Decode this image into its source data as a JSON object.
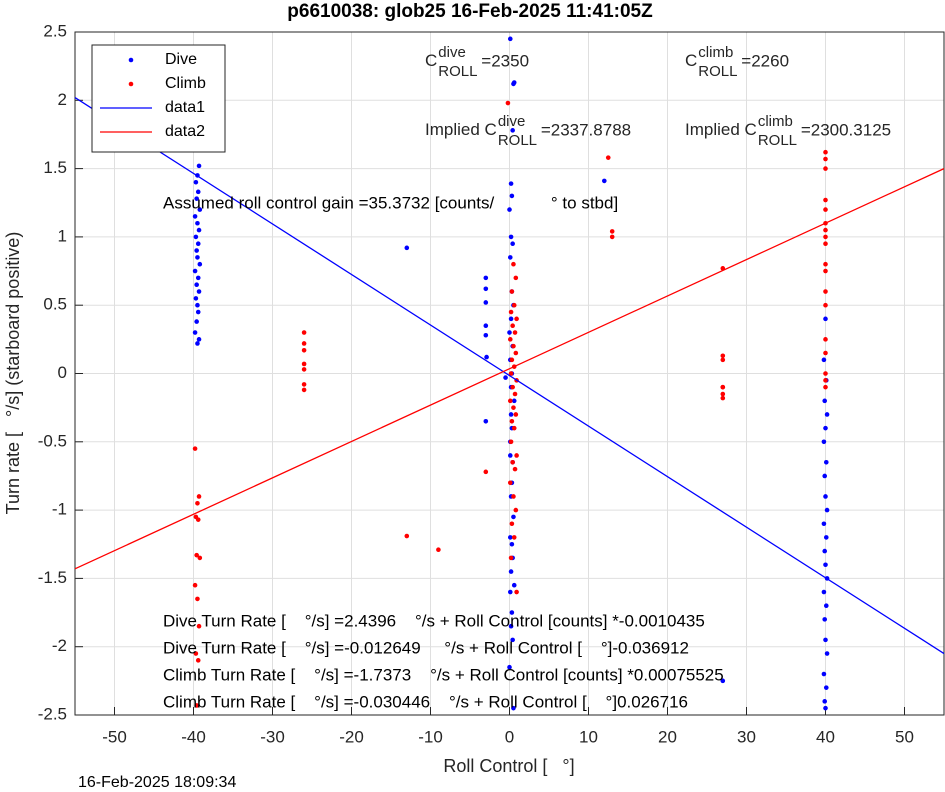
{
  "chart_data": {
    "type": "scatter",
    "title": "p6610038: glob25 16-Feb-2025 11:41:05Z",
    "x_label": "Roll Control [   °]",
    "y_label": "Turn rate [   °/s] (starboard positive)",
    "footer": "16-Feb-2025 18:09:34",
    "xlim": [
      -55,
      55
    ],
    "ylim": [
      -2.5,
      2.5
    ],
    "xticks": [
      -50,
      -40,
      -30,
      -20,
      -10,
      0,
      10,
      20,
      30,
      40,
      50
    ],
    "yticks": [
      -2.5,
      -2,
      -1.5,
      -1,
      -0.5,
      0,
      0.5,
      1,
      1.5,
      2,
      2.5
    ],
    "grid": true,
    "legend": "upper left",
    "series": [
      {
        "name": "Dive",
        "color": "#0000ff",
        "kind": "points",
        "x": [
          -39.8,
          -39.3,
          -39.5,
          -39.7,
          -39.4,
          -39.6,
          -39.2,
          -39.8,
          -39.5,
          -39.3,
          -39.7,
          -39.4,
          -39.6,
          -39.5,
          -39.2,
          -39.8,
          -39.4,
          -39.6,
          -39.3,
          -39.7,
          -39.5,
          -39.4,
          -39.6,
          -39.8,
          -39.3,
          -39.5,
          0.1,
          0.5,
          0.6,
          0.4,
          0.2,
          0.3,
          0.0,
          0.2,
          0.4,
          0.1,
          0.3,
          0.5,
          0.2,
          0.0,
          0.4,
          0.1,
          0.3,
          0.2,
          0.6,
          0.1,
          0.4,
          0.3,
          0.2,
          0.5,
          0.1,
          0.3,
          0.4,
          0.2,
          0.6,
          0.1,
          0.3,
          0.2,
          0.4,
          0.0,
          0.5,
          0.2,
          0.3,
          0.1,
          40.0,
          39.8,
          40.1,
          39.9,
          40.2,
          40.0,
          39.8,
          40.1,
          39.9,
          40.0,
          40.2,
          39.8,
          40.1,
          39.9,
          40.0,
          40.2,
          39.8,
          40.1,
          39.9,
          40.0,
          40.2,
          39.8,
          40.1,
          39.9,
          40.0,
          -3,
          -3,
          -3,
          -3,
          -3,
          -2.9,
          -3,
          -13,
          12,
          27,
          -0.5
        ],
        "y": [
          1.7,
          1.52,
          1.45,
          1.4,
          1.33,
          1.28,
          1.2,
          1.15,
          1.1,
          1.05,
          1.0,
          0.95,
          0.9,
          0.85,
          0.8,
          0.75,
          0.7,
          0.65,
          0.6,
          0.55,
          0.5,
          0.45,
          0.38,
          0.3,
          0.25,
          0.22,
          2.45,
          2.12,
          2.13,
          1.78,
          1.39,
          1.3,
          1.2,
          1.0,
          0.95,
          0.85,
          0.6,
          0.5,
          0.4,
          0.3,
          0.2,
          0.1,
          0,
          -0.1,
          -0.2,
          -0.5,
          -0.65,
          -0.8,
          -0.9,
          -1.05,
          -1.2,
          -1.25,
          -1.35,
          -1.45,
          -1.55,
          -1.6,
          -1.75,
          -1.85,
          -1.95,
          -2.15,
          -2.45,
          -0.3,
          -0.4,
          -0.6,
          0.4,
          0.1,
          -0.05,
          -0.2,
          -0.3,
          -0.4,
          -0.5,
          -0.65,
          -0.75,
          -0.9,
          -1.0,
          -1.1,
          -1.2,
          -1.3,
          -1.4,
          -1.5,
          -1.6,
          -1.7,
          -1.8,
          -1.95,
          -2.05,
          -2.2,
          -2.3,
          -2.4,
          -2.45,
          0.7,
          0.62,
          0.52,
          0.35,
          0.28,
          0.12,
          -0.35,
          0.92,
          1.41,
          -2.25,
          -0.03
        ]
      },
      {
        "name": "Climb",
        "color": "#ff0000",
        "kind": "points",
        "x": [
          -0.2,
          0.5,
          0.8,
          0.3,
          0.6,
          0.2,
          0.9,
          0.4,
          0.7,
          0.1,
          0.5,
          0.8,
          0.3,
          0.6,
          0.2,
          0.9,
          0.4,
          0.7,
          0.1,
          0.5,
          0.8,
          0.3,
          0.6,
          0.2,
          0.9,
          0.4,
          0.7,
          0.1,
          0.5,
          0.8,
          0.3,
          0.6,
          0.2,
          0.9,
          -39.8,
          -39.3,
          -39.5,
          -39.7,
          -39.4,
          -39.6,
          -39.2,
          -39.8,
          -39.5,
          -39.3,
          -39.7,
          -39.4,
          -39.6,
          -26,
          -26,
          -26,
          -26,
          -26,
          -26,
          -26,
          -3,
          -13,
          -9,
          12.5,
          13,
          13,
          27,
          27,
          27,
          27,
          27,
          27,
          27,
          40,
          40,
          40,
          40,
          40,
          40,
          40,
          40,
          40,
          40,
          40,
          40,
          40,
          40,
          40,
          40,
          40,
          40
        ],
        "y": [
          1.98,
          0.8,
          0.7,
          0.6,
          0.5,
          0.45,
          0.4,
          0.35,
          0.3,
          0.25,
          0.2,
          0.15,
          0.1,
          0.05,
          0,
          -0.05,
          -0.1,
          -0.15,
          -0.2,
          -0.25,
          -0.3,
          -0.35,
          -0.4,
          -0.5,
          -0.6,
          -0.65,
          -0.7,
          -0.8,
          -0.9,
          -1.0,
          -1.1,
          -1.2,
          -1.35,
          -1.6,
          -0.55,
          -0.9,
          -0.95,
          -1.05,
          -1.07,
          -1.33,
          -1.35,
          -1.55,
          -1.65,
          -1.85,
          -2.05,
          -2.1,
          -2.43,
          0.3,
          0.22,
          0.17,
          0.07,
          0.03,
          -0.08,
          -0.12,
          -0.72,
          -1.19,
          -1.29,
          1.58,
          1.04,
          1.0,
          0.77,
          0.13,
          0.1,
          -0.1,
          -0.1,
          -0.15,
          -0.18,
          1.62,
          1.57,
          1.5,
          1.27,
          1.2,
          1.1,
          1.05,
          1.0,
          0.95,
          0.8,
          0.75,
          0.6,
          0.5,
          0.25,
          0.15,
          0.0,
          -0.05,
          -0.1
        ]
      },
      {
        "name": "data1",
        "color": "#0000ff",
        "kind": "line",
        "x": [
          -55,
          55
        ],
        "y": [
          2.02,
          -2.05
        ]
      },
      {
        "name": "data2",
        "color": "#ff0000",
        "kind": "line",
        "x": [
          -55,
          55
        ],
        "y": [
          -1.43,
          1.5
        ]
      }
    ],
    "annotations": [
      {
        "base": "C",
        "sup": "dive",
        "sub": "ROLL",
        "value": "=2350"
      },
      {
        "base": "C",
        "sup": "climb",
        "sub": "ROLL",
        "value": "=2260"
      },
      {
        "base": "Implied C",
        "sup": "dive",
        "sub": "ROLL",
        "value": "=2337.8788"
      },
      {
        "base": "Implied C",
        "sup": "climb",
        "sub": "ROLL",
        "value": "=2300.3125"
      }
    ],
    "notes": [
      "Assumed roll control gain =35.3732 [counts/            ° to stbd]",
      "Dive Turn Rate [    °/s] =2.4396    °/s + Roll Control [counts] *-0.0010435",
      "Dive Turn Rate [    °/s] =-0.012649     °/s + Roll Control [    °]-0.036912",
      "Climb Turn Rate [    °/s] =-1.7373    °/s + Roll Control [counts] *0.00075525",
      "Climb Turn Rate [    °/s] =-0.030446    °/s + Roll Control [    °]0.026716"
    ]
  }
}
